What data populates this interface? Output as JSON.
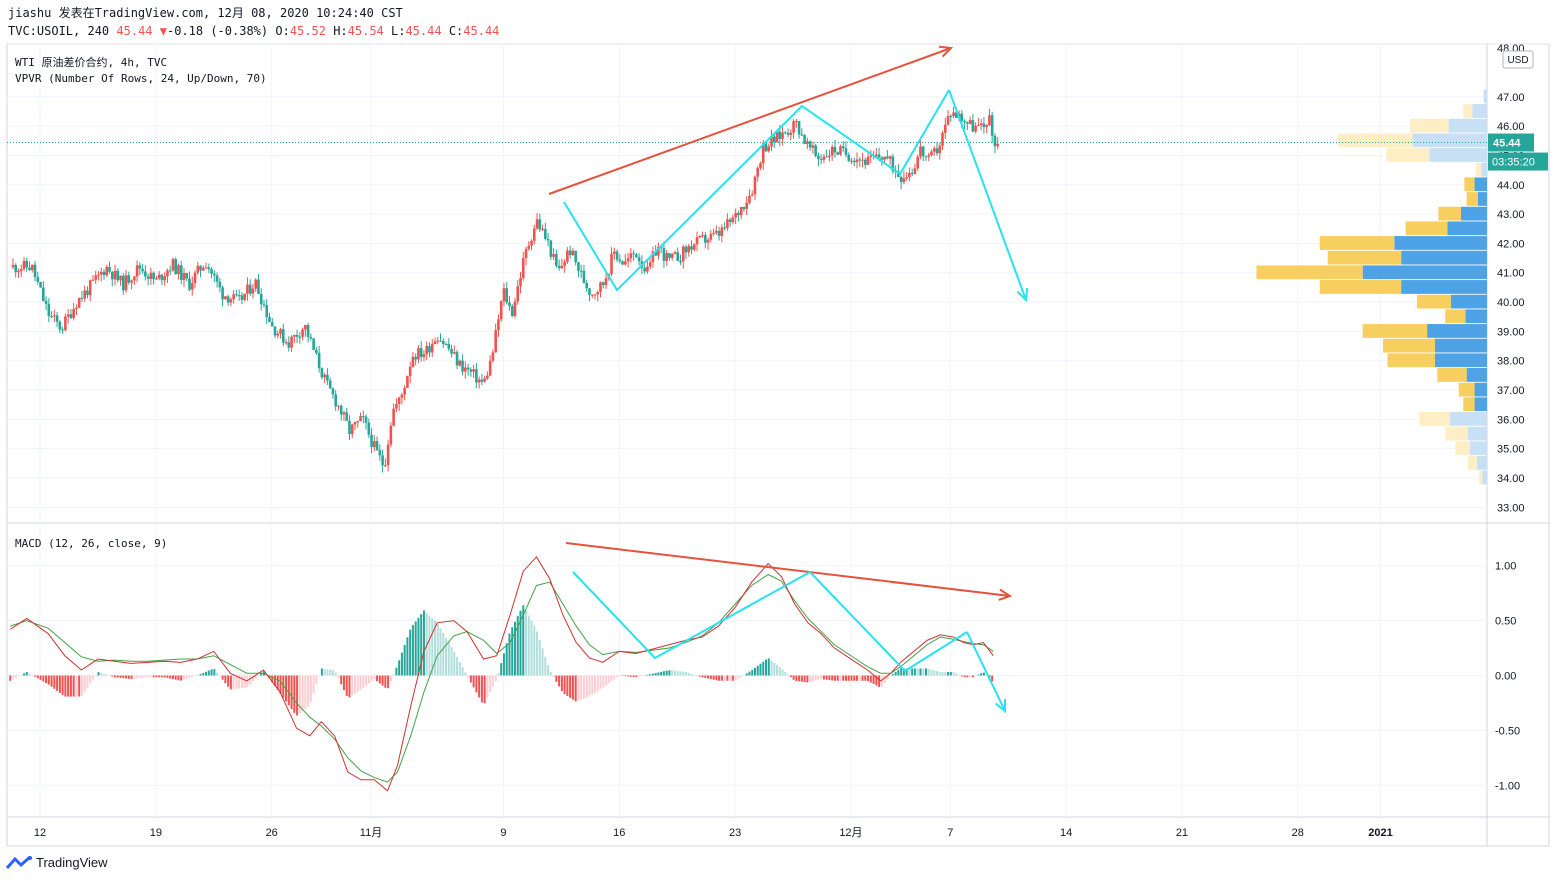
{
  "header": {
    "line1": "jiashu 发表在TradingView.com, 12月 08, 2020 10:24:40 CST",
    "symbol": "TVC:USOIL, 240",
    "last": "45.44",
    "change_arrow": "▼",
    "change": "-0.18 (-0.38%)",
    "o_label": "O:",
    "o_value": "45.52",
    "h_label": "H:",
    "h_value": "45.54",
    "l_label": "L:",
    "l_value": "45.44",
    "c_label": "C:",
    "c_value": "45.44"
  },
  "legend": {
    "main": "WTI 原油差价合约, 4h, TVC",
    "vpvr": "VPVR (Number Of Rows, 24, Up/Down, 70)",
    "macd": "MACD (12, 26, close, 9)"
  },
  "price_axis": {
    "currency": "USD",
    "current_price": "45.44",
    "countdown": "03:35:20",
    "top_cut_label": "48.00"
  },
  "brand": {
    "name": "TradingView"
  },
  "colors": {
    "up": "#ef5350",
    "down": "#26a69a",
    "line_cyan": "#26e3ef",
    "arrow_red": "#e5533d",
    "vol_up": "#f7cf5e",
    "vol_down": "#4ea2e6",
    "macd_line": "#d32f2f",
    "signal_line": "#43a047"
  },
  "chart_data": [
    {
      "type": "candlestick",
      "panel": "price",
      "ylim": [
        32.5,
        48.8
      ],
      "y_ticks": [
        "47.00",
        "46.00",
        "45.00",
        "44.00",
        "43.00",
        "42.00",
        "41.00",
        "40.00",
        "39.00",
        "38.00",
        "37.00",
        "36.00",
        "35.00",
        "34.00",
        "33.00"
      ],
      "x_ticks": [
        "12",
        "19",
        "26",
        "11月",
        "9",
        "16",
        "23",
        "12月",
        "7",
        "14",
        "21",
        "28",
        "2021"
      ],
      "x_tick_positions_days": [
        0,
        7,
        14,
        20,
        28,
        35,
        42,
        49,
        55,
        62,
        69,
        76,
        81
      ],
      "close_path": [
        [
          -1.8,
          41.2
        ],
        [
          -0.5,
          41.2
        ],
        [
          0.5,
          39.6
        ],
        [
          1.3,
          39.1
        ],
        [
          2.2,
          40.0
        ],
        [
          3.0,
          40.5
        ],
        [
          4.0,
          41.2
        ],
        [
          5.0,
          40.6
        ],
        [
          6.0,
          41.2
        ],
        [
          7.0,
          40.7
        ],
        [
          8.0,
          41.3
        ],
        [
          9.0,
          40.6
        ],
        [
          10.0,
          41.4
        ],
        [
          11.0,
          40.3
        ],
        [
          12.0,
          40.0
        ],
        [
          13.0,
          40.7
        ],
        [
          14.0,
          39.2
        ],
        [
          15.0,
          38.6
        ],
        [
          16.0,
          39.2
        ],
        [
          16.5,
          38.4
        ],
        [
          17.3,
          37.2
        ],
        [
          18.0,
          36.5
        ],
        [
          18.7,
          35.6
        ],
        [
          19.5,
          36.0
        ],
        [
          20.3,
          34.9
        ],
        [
          20.8,
          34.4
        ],
        [
          21.3,
          36.3
        ],
        [
          21.8,
          36.7
        ],
        [
          22.5,
          38.2
        ],
        [
          23.3,
          38.3
        ],
        [
          24.0,
          38.9
        ],
        [
          24.7,
          38.4
        ],
        [
          25.3,
          37.9
        ],
        [
          26.0,
          37.6
        ],
        [
          26.8,
          37.2
        ],
        [
          27.3,
          38.1
        ],
        [
          28.0,
          40.4
        ],
        [
          28.5,
          39.6
        ],
        [
          29.3,
          41.6
        ],
        [
          30.0,
          42.8
        ],
        [
          30.7,
          42.0
        ],
        [
          31.3,
          41.0
        ],
        [
          32.0,
          41.8
        ],
        [
          32.8,
          40.8
        ],
        [
          33.3,
          40.3
        ],
        [
          34.0,
          40.6
        ],
        [
          34.7,
          41.7
        ],
        [
          35.3,
          41.3
        ],
        [
          36.0,
          41.7
        ],
        [
          36.7,
          41.0
        ],
        [
          37.3,
          41.9
        ],
        [
          38.0,
          41.4
        ],
        [
          38.7,
          41.6
        ],
        [
          39.3,
          41.9
        ],
        [
          40.0,
          42.1
        ],
        [
          41.0,
          42.3
        ],
        [
          42.0,
          42.9
        ],
        [
          43.0,
          43.8
        ],
        [
          43.7,
          45.3
        ],
        [
          44.3,
          45.5
        ],
        [
          45.0,
          45.8
        ],
        [
          45.7,
          46.1
        ],
        [
          46.3,
          45.4
        ],
        [
          47.0,
          44.9
        ],
        [
          48.0,
          45.2
        ],
        [
          49.0,
          45.0
        ],
        [
          50.0,
          44.8
        ],
        [
          51.0,
          45.0
        ],
        [
          52.0,
          44.3
        ],
        [
          52.7,
          44.5
        ],
        [
          53.2,
          45.2
        ],
        [
          53.7,
          44.8
        ],
        [
          54.3,
          45.3
        ],
        [
          55.0,
          46.5
        ],
        [
          55.7,
          46.3
        ],
        [
          56.3,
          46.0
        ],
        [
          57.0,
          45.9
        ],
        [
          57.3,
          46.4
        ],
        [
          57.6,
          45.5
        ],
        [
          58.0,
          45.44
        ]
      ],
      "current_price": 45.44
    },
    {
      "type": "bar",
      "panel": "vpvr",
      "row_prices": [
        47.0,
        46.5,
        46.0,
        45.5,
        45.0,
        44.5,
        44.0,
        43.5,
        43.0,
        42.5,
        42.0,
        41.5,
        41.0,
        40.5,
        40.0,
        39.5,
        39.0,
        38.5,
        38.0,
        37.5,
        37.0,
        36.5,
        36.0,
        35.5,
        35.0,
        34.5,
        34.0
      ],
      "up_volume": [
        0,
        0.8,
        3.4,
        6.6,
        3.8,
        0.5,
        0.9,
        1.0,
        2.0,
        3.7,
        6.6,
        6.5,
        9.4,
        7.2,
        3.0,
        1.8,
        5.7,
        4.6,
        4.2,
        2.6,
        1.4,
        1.0,
        2.7,
        2.0,
        1.3,
        0.8,
        0.3
      ],
      "down_volume": [
        0.3,
        1.3,
        3.4,
        6.6,
        5.1,
        0.5,
        1.1,
        0.8,
        2.3,
        3.5,
        8.2,
        7.6,
        11.0,
        7.6,
        3.2,
        1.9,
        5.3,
        4.6,
        4.6,
        1.8,
        1.1,
        1.1,
        3.3,
        1.7,
        1.5,
        0.9,
        0.4
      ]
    },
    {
      "type": "line",
      "panel": "macd",
      "ylim": [
        -1.28,
        1.38
      ],
      "y_ticks": [
        "1.00",
        "0.50",
        "0.00",
        "-0.50",
        "-1.00"
      ],
      "series": [
        {
          "name": "MACD",
          "points": [
            [
              -1.8,
              0.42
            ],
            [
              -0.8,
              0.52
            ],
            [
              0.5,
              0.38
            ],
            [
              1.5,
              0.18
            ],
            [
              2.5,
              0.05
            ],
            [
              3.5,
              0.15
            ],
            [
              4.5,
              0.13
            ],
            [
              5.5,
              0.11
            ],
            [
              6.5,
              0.12
            ],
            [
              7.5,
              0.13
            ],
            [
              8.5,
              0.12
            ],
            [
              9.5,
              0.15
            ],
            [
              10.5,
              0.22
            ],
            [
              11.5,
              0.02
            ],
            [
              12.5,
              -0.05
            ],
            [
              13.5,
              0.05
            ],
            [
              14.5,
              -0.15
            ],
            [
              15.5,
              -0.48
            ],
            [
              16.3,
              -0.55
            ],
            [
              17.0,
              -0.42
            ],
            [
              17.8,
              -0.55
            ],
            [
              18.6,
              -0.88
            ],
            [
              19.4,
              -0.95
            ],
            [
              20.2,
              -0.95
            ],
            [
              21.0,
              -1.05
            ],
            [
              21.6,
              -0.82
            ],
            [
              22.4,
              -0.28
            ],
            [
              23.2,
              0.22
            ],
            [
              24.0,
              0.48
            ],
            [
              25.0,
              0.5
            ],
            [
              25.8,
              0.4
            ],
            [
              26.8,
              0.15
            ],
            [
              27.6,
              0.18
            ],
            [
              28.4,
              0.55
            ],
            [
              29.2,
              0.95
            ],
            [
              30.0,
              1.08
            ],
            [
              30.8,
              0.88
            ],
            [
              31.6,
              0.55
            ],
            [
              32.4,
              0.3
            ],
            [
              33.2,
              0.16
            ],
            [
              34.0,
              0.12
            ],
            [
              35.0,
              0.22
            ],
            [
              36.0,
              0.2
            ],
            [
              37.0,
              0.24
            ],
            [
              38.0,
              0.28
            ],
            [
              39.0,
              0.32
            ],
            [
              40.0,
              0.35
            ],
            [
              41.0,
              0.45
            ],
            [
              42.0,
              0.62
            ],
            [
              43.0,
              0.85
            ],
            [
              44.0,
              1.02
            ],
            [
              44.8,
              0.9
            ],
            [
              45.6,
              0.65
            ],
            [
              46.4,
              0.48
            ],
            [
              47.2,
              0.38
            ],
            [
              48.0,
              0.25
            ],
            [
              49.0,
              0.15
            ],
            [
              50.0,
              0.05
            ],
            [
              50.8,
              -0.05
            ],
            [
              51.4,
              0.02
            ],
            [
              52.0,
              0.12
            ],
            [
              52.8,
              0.22
            ],
            [
              53.6,
              0.32
            ],
            [
              54.4,
              0.37
            ],
            [
              55.2,
              0.35
            ],
            [
              55.8,
              0.3
            ],
            [
              56.4,
              0.28
            ],
            [
              57.0,
              0.3
            ],
            [
              57.6,
              0.18
            ]
          ]
        },
        {
          "name": "Signal",
          "points": [
            [
              -1.8,
              0.45
            ],
            [
              -0.8,
              0.5
            ],
            [
              0.5,
              0.43
            ],
            [
              1.5,
              0.3
            ],
            [
              2.5,
              0.17
            ],
            [
              3.5,
              0.13
            ],
            [
              4.5,
              0.14
            ],
            [
              5.5,
              0.13
            ],
            [
              6.5,
              0.13
            ],
            [
              7.5,
              0.14
            ],
            [
              8.5,
              0.15
            ],
            [
              9.5,
              0.15
            ],
            [
              10.5,
              0.18
            ],
            [
              11.5,
              0.1
            ],
            [
              12.5,
              0.02
            ],
            [
              13.5,
              0.02
            ],
            [
              14.5,
              -0.05
            ],
            [
              15.5,
              -0.25
            ],
            [
              16.3,
              -0.38
            ],
            [
              17.0,
              -0.46
            ],
            [
              17.8,
              -0.58
            ],
            [
              18.6,
              -0.75
            ],
            [
              19.4,
              -0.87
            ],
            [
              20.2,
              -0.93
            ],
            [
              21.0,
              -0.97
            ],
            [
              21.6,
              -0.88
            ],
            [
              22.4,
              -0.55
            ],
            [
              23.2,
              -0.15
            ],
            [
              24.0,
              0.18
            ],
            [
              25.0,
              0.36
            ],
            [
              25.8,
              0.4
            ],
            [
              26.8,
              0.32
            ],
            [
              27.6,
              0.2
            ],
            [
              28.4,
              0.3
            ],
            [
              29.2,
              0.55
            ],
            [
              30.0,
              0.82
            ],
            [
              30.8,
              0.85
            ],
            [
              31.6,
              0.65
            ],
            [
              32.4,
              0.45
            ],
            [
              33.2,
              0.28
            ],
            [
              34.0,
              0.19
            ],
            [
              35.0,
              0.22
            ],
            [
              36.0,
              0.21
            ],
            [
              37.0,
              0.23
            ],
            [
              38.0,
              0.25
            ],
            [
              39.0,
              0.3
            ],
            [
              40.0,
              0.36
            ],
            [
              41.0,
              0.48
            ],
            [
              42.0,
              0.65
            ],
            [
              43.0,
              0.82
            ],
            [
              44.0,
              0.92
            ],
            [
              44.8,
              0.86
            ],
            [
              45.6,
              0.68
            ],
            [
              46.4,
              0.52
            ],
            [
              47.2,
              0.4
            ],
            [
              48.0,
              0.28
            ],
            [
              49.0,
              0.18
            ],
            [
              50.0,
              0.08
            ],
            [
              50.8,
              0.02
            ],
            [
              51.4,
              0.02
            ],
            [
              52.0,
              0.08
            ],
            [
              52.8,
              0.18
            ],
            [
              53.6,
              0.28
            ],
            [
              54.4,
              0.35
            ],
            [
              55.2,
              0.33
            ],
            [
              55.8,
              0.31
            ],
            [
              56.4,
              0.29
            ],
            [
              57.0,
              0.28
            ],
            [
              57.6,
              0.22
            ]
          ]
        }
      ]
    }
  ]
}
